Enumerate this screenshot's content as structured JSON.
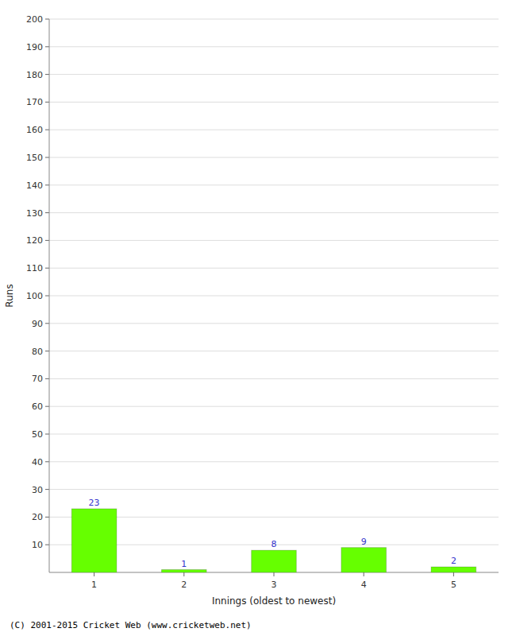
{
  "chart_data": {
    "type": "bar",
    "categories": [
      "1",
      "2",
      "3",
      "4",
      "5"
    ],
    "values": [
      23,
      1,
      8,
      9,
      2
    ],
    "color": "#66ff00",
    "xlabel": "Innings (oldest to newest)",
    "ylabel": "Runs",
    "ylim": [
      0,
      200
    ],
    "yticks": [
      10,
      20,
      30,
      40,
      50,
      60,
      70,
      80,
      90,
      100,
      110,
      120,
      130,
      140,
      150,
      160,
      170,
      180,
      190,
      200
    ],
    "grid": true,
    "data_labels": true,
    "annotations": [
      "(C) 2001-2015 Cricket Web (www.cricketweb.net)"
    ]
  }
}
